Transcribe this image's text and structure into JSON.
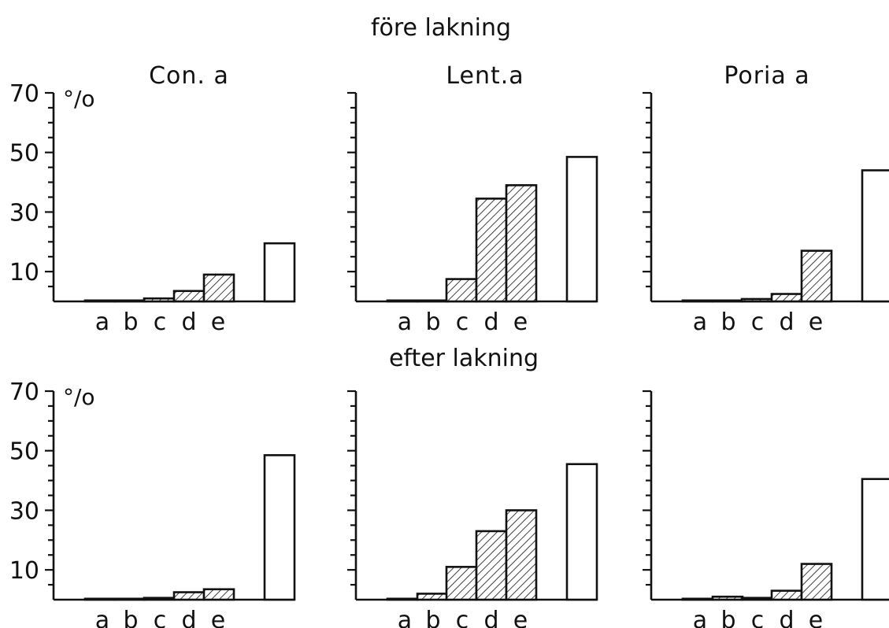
{
  "figure": {
    "section_titles": [
      "före lakning",
      "efter lakning"
    ],
    "panel_titles": [
      "Con. a",
      "Lent.a",
      "Poria a"
    ]
  },
  "colors": {
    "ink": "#111111",
    "background": "#ffffff",
    "open_bar_fill": "#ffffff"
  },
  "chart_data": [
    {
      "type": "bar",
      "title": "Con. a",
      "group_title": "före lakning",
      "ylabel": "%",
      "ylim": [
        0,
        70
      ],
      "yticks": [
        10,
        30,
        50,
        70
      ],
      "categories": [
        "a",
        "b",
        "c",
        "d",
        "e",
        ""
      ],
      "fill_patterns": [
        "hatched",
        "hatched",
        "hatched",
        "hatched",
        "hatched",
        "open"
      ],
      "values": [
        0,
        0,
        1,
        3.5,
        9,
        19.5
      ]
    },
    {
      "type": "bar",
      "title": "Lent.a",
      "group_title": "före lakning",
      "ylabel": "",
      "ylim": [
        0,
        70
      ],
      "yticks": [
        10,
        30,
        50,
        70
      ],
      "categories": [
        "a",
        "b",
        "c",
        "d",
        "e",
        ""
      ],
      "fill_patterns": [
        "hatched",
        "hatched",
        "hatched",
        "hatched",
        "hatched",
        "open"
      ],
      "values": [
        0,
        0,
        7.5,
        34.5,
        39,
        48.5
      ]
    },
    {
      "type": "bar",
      "title": "Poria a",
      "group_title": "före lakning",
      "ylabel": "",
      "ylim": [
        0,
        70
      ],
      "yticks": [
        10,
        30,
        50,
        70
      ],
      "categories": [
        "a",
        "b",
        "c",
        "d",
        "e",
        ""
      ],
      "fill_patterns": [
        "hatched",
        "hatched",
        "hatched",
        "hatched",
        "hatched",
        "open"
      ],
      "values": [
        0,
        0,
        0.8,
        2.5,
        17,
        44
      ]
    },
    {
      "type": "bar",
      "title": "",
      "group_title": "efter lakning",
      "ylabel": "%",
      "ylim": [
        0,
        70
      ],
      "yticks": [
        10,
        30,
        50,
        70
      ],
      "categories": [
        "a",
        "b",
        "c",
        "d",
        "e",
        ""
      ],
      "fill_patterns": [
        "hatched",
        "hatched",
        "hatched",
        "hatched",
        "hatched",
        "open"
      ],
      "values": [
        0,
        0,
        0.6,
        2.5,
        3.5,
        48.5
      ]
    },
    {
      "type": "bar",
      "title": "",
      "group_title": "efter lakning",
      "ylabel": "",
      "ylim": [
        0,
        70
      ],
      "yticks": [
        10,
        30,
        50,
        70
      ],
      "categories": [
        "a",
        "b",
        "c",
        "d",
        "e",
        ""
      ],
      "fill_patterns": [
        "hatched",
        "hatched",
        "hatched",
        "hatched",
        "hatched",
        "open"
      ],
      "values": [
        0,
        2,
        11,
        23,
        30,
        45.5
      ]
    },
    {
      "type": "bar",
      "title": "",
      "group_title": "efter lakning",
      "ylabel": "",
      "ylim": [
        0,
        70
      ],
      "yticks": [
        10,
        30,
        50,
        70
      ],
      "categories": [
        "a",
        "b",
        "c",
        "d",
        "e",
        ""
      ],
      "fill_patterns": [
        "hatched",
        "hatched",
        "hatched",
        "hatched",
        "hatched",
        "open"
      ],
      "values": [
        0,
        1,
        0.6,
        3,
        12,
        40.5
      ]
    }
  ]
}
